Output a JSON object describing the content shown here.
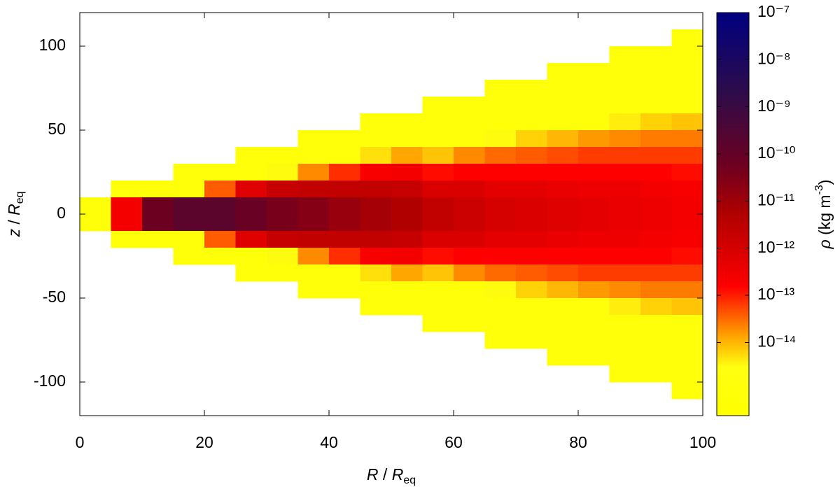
{
  "chart_data": {
    "type": "heatmap",
    "xlabel": [
      "R",
      " / ",
      "R",
      "eq"
    ],
    "ylabel": [
      "z",
      " / ",
      "R",
      "eq"
    ],
    "clabel": [
      "ρ",
      " (kg m",
      "-3",
      ")"
    ],
    "x": [
      2.5,
      7.5,
      12.5,
      17.5,
      22.5,
      27.5,
      32.5,
      37.5,
      42.5,
      47.5,
      52.5,
      57.5,
      62.5,
      67.5,
      72.5,
      77.5,
      82.5,
      87.5,
      92.5,
      97.5
    ],
    "y": [
      105,
      95,
      85,
      75,
      65,
      55,
      45,
      35,
      25,
      15,
      5,
      -5,
      -15,
      -25,
      -35,
      -45,
      -55,
      -65,
      -75,
      -85,
      -95,
      -105
    ],
    "values": [
      [
        null,
        null,
        null,
        null,
        null,
        null,
        null,
        null,
        null,
        null,
        1e-15,
        1e-15,
        null,
        null,
        null,
        null,
        null,
        null,
        null,
        null,
        null,
        null
      ],
      [
        null,
        null,
        null,
        null,
        null,
        null,
        null,
        null,
        null,
        1e-15,
        2.5e-13,
        2.5e-13,
        1e-15,
        null,
        null,
        null,
        null,
        null,
        null,
        null,
        null,
        null
      ],
      [
        null,
        null,
        null,
        null,
        null,
        null,
        null,
        null,
        null,
        1e-15,
        6.3e-11,
        6.3e-11,
        1e-15,
        null,
        null,
        null,
        null,
        null,
        null,
        null,
        null,
        null
      ],
      [
        null,
        null,
        null,
        null,
        null,
        null,
        null,
        null,
        1e-15,
        1e-15,
        1.6e-10,
        1.6e-10,
        1e-15,
        1e-15,
        null,
        null,
        null,
        null,
        null,
        null,
        null,
        null
      ],
      [
        null,
        null,
        null,
        null,
        null,
        null,
        null,
        null,
        1e-15,
        4e-14,
        1.6e-10,
        1.6e-10,
        4e-14,
        1e-15,
        null,
        null,
        null,
        null,
        null,
        null,
        null,
        null
      ],
      [
        null,
        null,
        null,
        null,
        null,
        null,
        null,
        1e-15,
        1e-15,
        6.3e-13,
        7.9e-11,
        7.9e-11,
        6.3e-13,
        1e-15,
        1e-15,
        null,
        null,
        null,
        null,
        null,
        null,
        null
      ],
      [
        null,
        null,
        null,
        null,
        null,
        null,
        null,
        1e-15,
        3.2e-15,
        2e-12,
        4e-11,
        4e-11,
        2e-12,
        3.2e-15,
        1e-15,
        null,
        null,
        null,
        null,
        null,
        null,
        null
      ],
      [
        null,
        null,
        null,
        null,
        null,
        null,
        1e-15,
        1e-15,
        2e-14,
        2.5e-12,
        2.5e-11,
        2.5e-11,
        2.5e-12,
        2e-14,
        1e-15,
        1e-15,
        null,
        null,
        null,
        null,
        null,
        null
      ],
      [
        null,
        null,
        null,
        null,
        null,
        null,
        1e-15,
        1e-15,
        7.9e-14,
        2.5e-12,
        1.3e-11,
        1.3e-11,
        2.5e-12,
        7.9e-14,
        1e-15,
        1e-15,
        null,
        null,
        null,
        null,
        null,
        null
      ],
      [
        null,
        null,
        null,
        null,
        null,
        1e-15,
        1e-15,
        5e-15,
        2e-13,
        2.5e-12,
        7.9e-12,
        7.9e-12,
        2.5e-12,
        2e-13,
        5e-15,
        1e-15,
        1e-15,
        null,
        null,
        null,
        null,
        null
      ],
      [
        null,
        null,
        null,
        null,
        null,
        1e-15,
        1e-15,
        1.3e-14,
        2.5e-13,
        2e-12,
        5e-12,
        5e-12,
        2e-12,
        2.5e-13,
        1.3e-14,
        1e-15,
        1e-15,
        null,
        null,
        null,
        null,
        null
      ],
      [
        null,
        null,
        null,
        null,
        1e-15,
        1e-15,
        1e-15,
        7.9e-15,
        1.3e-13,
        7.9e-13,
        2.5e-12,
        2.5e-12,
        7.9e-13,
        1.3e-13,
        7.9e-15,
        1e-15,
        1e-15,
        1e-15,
        null,
        null,
        null,
        null
      ],
      [
        null,
        null,
        null,
        null,
        1e-15,
        1e-15,
        1e-15,
        2e-14,
        1.6e-13,
        7.9e-13,
        1.6e-12,
        1.6e-12,
        7.9e-13,
        1.6e-13,
        2e-14,
        1e-15,
        1e-15,
        1e-15,
        null,
        null,
        null,
        null
      ],
      [
        null,
        null,
        null,
        1e-15,
        1e-15,
        1e-15,
        3.2e-15,
        3.2e-14,
        1.6e-13,
        5e-13,
        1e-12,
        1e-12,
        5e-13,
        1.6e-13,
        3.2e-14,
        3.2e-15,
        1e-15,
        1e-15,
        1e-15,
        null,
        null,
        null
      ],
      [
        null,
        null,
        null,
        1e-15,
        1e-15,
        1e-15,
        6.3e-15,
        4e-14,
        1.6e-13,
        5e-13,
        7.9e-13,
        7.9e-13,
        5e-13,
        1.6e-13,
        4e-14,
        6.3e-15,
        1e-15,
        1e-15,
        1e-15,
        null,
        null,
        null
      ],
      [
        null,
        null,
        1e-15,
        1e-15,
        1e-15,
        1e-15,
        1e-14,
        5e-14,
        1.6e-13,
        4e-13,
        6.3e-13,
        6.3e-13,
        4e-13,
        1.6e-13,
        5e-14,
        1e-14,
        1e-15,
        1e-15,
        1e-15,
        1e-15,
        null,
        null
      ],
      [
        null,
        null,
        1e-15,
        1e-15,
        1e-15,
        1e-15,
        1.6e-14,
        6.3e-14,
        1.6e-13,
        3.2e-13,
        5e-13,
        5e-13,
        3.2e-13,
        1.6e-13,
        6.3e-14,
        1.6e-14,
        1e-15,
        1e-15,
        1e-15,
        1e-15,
        null,
        null
      ],
      [
        null,
        1e-15,
        1e-15,
        1e-15,
        1e-15,
        4e-15,
        2e-14,
        6.3e-14,
        1.6e-13,
        3.2e-13,
        4e-13,
        4e-13,
        3.2e-13,
        1.6e-13,
        6.3e-14,
        2e-14,
        4e-15,
        1e-15,
        1e-15,
        1e-15,
        1e-15,
        null
      ],
      [
        null,
        1e-15,
        1e-15,
        1e-15,
        1e-15,
        6.3e-15,
        2.5e-14,
        6.3e-14,
        1.6e-13,
        2.5e-13,
        3.2e-13,
        3.2e-13,
        2.5e-13,
        1.6e-13,
        6.3e-14,
        2.5e-14,
        6.3e-15,
        1e-15,
        1e-15,
        1e-15,
        1e-15,
        null
      ],
      [
        1e-15,
        1e-15,
        1e-15,
        1e-15,
        1e-15,
        7.9e-15,
        2.5e-14,
        6.3e-14,
        1.3e-13,
        2e-13,
        2.5e-13,
        2.5e-13,
        2e-13,
        1.3e-13,
        6.3e-14,
        2.5e-14,
        7.9e-15,
        1e-15,
        1e-15,
        1e-15,
        1e-15,
        1e-15
      ]
    ],
    "xlim": [
      0,
      100
    ],
    "ylim": [
      -120,
      120
    ],
    "xticks": [
      0,
      20,
      40,
      60,
      80,
      100
    ],
    "yticks": [
      -100,
      -50,
      0,
      50,
      100
    ],
    "color_scale": "log",
    "clim": [
      2.8e-16,
      1e-07
    ],
    "cticks": [
      {
        "value": 1e-07,
        "label": "10⁻⁷"
      },
      {
        "value": 1e-08,
        "label": "10⁻⁸"
      },
      {
        "value": 1e-09,
        "label": "10⁻⁹"
      },
      {
        "value": 1e-10,
        "label": "10⁻¹⁰"
      },
      {
        "value": 1e-11,
        "label": "10⁻¹¹"
      },
      {
        "value": 1e-12,
        "label": "10⁻¹²"
      },
      {
        "value": 1e-13,
        "label": "10⁻¹³"
      },
      {
        "value": 1e-14,
        "label": "10⁻¹⁴"
      }
    ]
  }
}
